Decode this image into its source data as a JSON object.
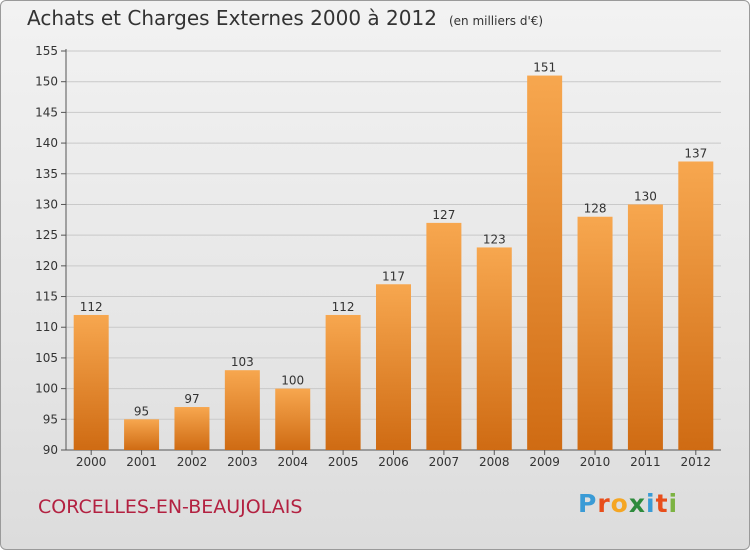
{
  "title": "Achats et Charges Externes 2000 à 2012",
  "unit_note": "(en milliers d'€)",
  "commune": "CORCELLES-EN-BEAUJOLAIS",
  "logo": {
    "letters": [
      "P",
      "r",
      "o",
      "x",
      "i",
      "t",
      "i"
    ],
    "colors": [
      "#3a9bd6",
      "#e84e1b",
      "#f5a623",
      "#2e8b3d",
      "#3a9bd6",
      "#e84e1b",
      "#7cb342"
    ]
  },
  "colors": {
    "bar_top": "#f7a74f",
    "bar_bottom": "#cf6b13",
    "grid": "#c9c9c9",
    "text": "#333333",
    "commune": "#b32141"
  },
  "chart_data": {
    "type": "bar",
    "categories": [
      "2000",
      "2001",
      "2002",
      "2003",
      "2004",
      "2005",
      "2006",
      "2007",
      "2008",
      "2009",
      "2010",
      "2011",
      "2012"
    ],
    "values": [
      112,
      95,
      97,
      103,
      100,
      112,
      117,
      127,
      123,
      151,
      128,
      130,
      137
    ],
    "title": "Achats et Charges Externes 2000 à 2012",
    "xlabel": "",
    "ylabel": "",
    "ylim": [
      90,
      155
    ],
    "yticks": [
      90,
      95,
      100,
      105,
      110,
      115,
      120,
      125,
      130,
      135,
      140,
      145,
      150,
      155
    ],
    "grid": true,
    "data_labels": true
  }
}
